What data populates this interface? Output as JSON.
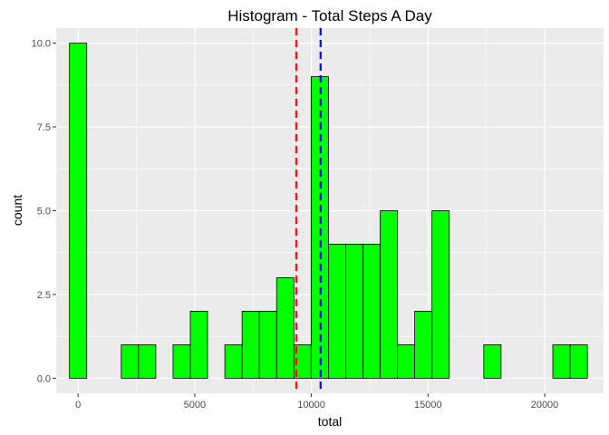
{
  "chart_data": {
    "type": "bar",
    "subtype": "histogram",
    "title": "Histogram - Total Steps A Day",
    "xlabel": "total",
    "ylabel": "count",
    "xlim": [
      -940,
      22525
    ],
    "ylim": [
      -0.45,
      10.45
    ],
    "x_ticks": [
      0,
      5000,
      10000,
      15000,
      20000
    ],
    "x_tick_labels": [
      "0",
      "5000",
      "10000",
      "15000",
      "20000"
    ],
    "y_ticks": [
      0,
      2.5,
      5,
      7.5,
      10
    ],
    "y_tick_labels": [
      "0.0",
      "2.5",
      "5.0",
      "7.5",
      "10.0"
    ],
    "bin_width": 740,
    "bins": [
      {
        "center": 0,
        "count": 10
      },
      {
        "center": 740,
        "count": 0
      },
      {
        "center": 1480,
        "count": 0
      },
      {
        "center": 2220,
        "count": 1
      },
      {
        "center": 2960,
        "count": 1
      },
      {
        "center": 3700,
        "count": 0
      },
      {
        "center": 4440,
        "count": 1
      },
      {
        "center": 5180,
        "count": 2
      },
      {
        "center": 5920,
        "count": 0
      },
      {
        "center": 6660,
        "count": 1
      },
      {
        "center": 7400,
        "count": 2
      },
      {
        "center": 8140,
        "count": 2
      },
      {
        "center": 8880,
        "count": 3
      },
      {
        "center": 9620,
        "count": 1
      },
      {
        "center": 10360,
        "count": 9
      },
      {
        "center": 11100,
        "count": 4
      },
      {
        "center": 11840,
        "count": 4
      },
      {
        "center": 12580,
        "count": 4
      },
      {
        "center": 13320,
        "count": 5
      },
      {
        "center": 14060,
        "count": 1
      },
      {
        "center": 14800,
        "count": 2
      },
      {
        "center": 15540,
        "count": 5
      },
      {
        "center": 16280,
        "count": 0
      },
      {
        "center": 17020,
        "count": 0
      },
      {
        "center": 17760,
        "count": 1
      },
      {
        "center": 18500,
        "count": 0
      },
      {
        "center": 19240,
        "count": 0
      },
      {
        "center": 19980,
        "count": 0
      },
      {
        "center": 20720,
        "count": 1
      },
      {
        "center": 21460,
        "count": 1
      }
    ],
    "reference_lines": [
      {
        "value": 9354,
        "color": "#ff0000",
        "style": "dashed"
      },
      {
        "value": 10395,
        "color": "#0000ff",
        "style": "dashed"
      }
    ],
    "colors": {
      "bar_fill": "#00ff00",
      "bar_stroke": "#000000",
      "panel_background": "#ebebeb",
      "grid": "#ffffff"
    },
    "grid": true
  }
}
